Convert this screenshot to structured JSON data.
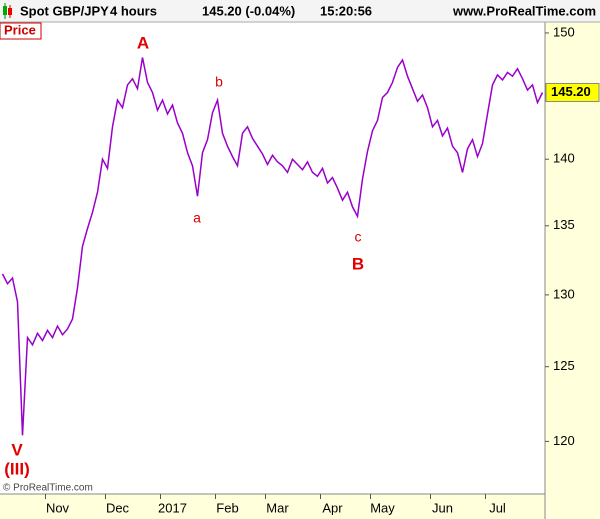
{
  "chart_data": {
    "type": "line",
    "title": "Spot GBP/JPY",
    "interval": "4 hours",
    "quote": "145.20 (-0.04%)",
    "time": "15:20:56",
    "source": "www.ProRealTime.com",
    "copyright": "© ProRealTime.com",
    "log_scale": true,
    "grid": false,
    "categories": [
      null,
      null,
      null,
      null,
      null,
      null,
      null,
      null,
      null,
      null,
      null,
      "Nov",
      null,
      null,
      null,
      null,
      null,
      null,
      null,
      null,
      null,
      null,
      null,
      "Dec",
      null,
      null,
      null,
      null,
      null,
      null,
      null,
      null,
      null,
      null,
      "2017",
      null,
      null,
      null,
      null,
      null,
      null,
      null,
      null,
      null,
      null,
      "Feb",
      null,
      null,
      null,
      null,
      null,
      null,
      null,
      null,
      null,
      "Mar",
      null,
      null,
      null,
      null,
      null,
      null,
      null,
      null,
      null,
      null,
      "Apr",
      null,
      null,
      null,
      null,
      null,
      null,
      null,
      null,
      null,
      "May",
      null,
      null,
      null,
      null,
      null,
      null,
      null,
      null,
      null,
      null,
      null,
      "Jun",
      null,
      null,
      null,
      null,
      null,
      null,
      null,
      null,
      null,
      null,
      "Jul",
      null,
      null,
      null,
      null,
      null,
      null,
      null,
      null,
      null
    ],
    "series": [
      {
        "name": "Price",
        "color": "#9900cc",
        "values": [
          131.5,
          130.8,
          131.2,
          129.5,
          120.4,
          127.0,
          126.5,
          127.3,
          126.8,
          127.5,
          127.0,
          127.8,
          127.2,
          127.6,
          128.3,
          130.5,
          133.5,
          134.8,
          136.0,
          137.5,
          140.0,
          139.3,
          142.5,
          144.6,
          144.0,
          145.8,
          146.3,
          145.5,
          148.0,
          146.0,
          145.2,
          143.8,
          144.6,
          143.5,
          144.2,
          142.8,
          142.0,
          140.5,
          139.5,
          137.2,
          140.5,
          141.5,
          143.6,
          144.6,
          142.0,
          141.0,
          140.2,
          139.5,
          142.0,
          142.5,
          141.6,
          141.0,
          140.4,
          139.6,
          140.3,
          139.8,
          139.5,
          139.0,
          140.0,
          139.6,
          139.2,
          139.8,
          139.0,
          138.7,
          139.3,
          138.2,
          138.6,
          137.8,
          136.9,
          137.5,
          136.4,
          135.7,
          138.5,
          140.6,
          142.2,
          143.0,
          144.8,
          145.2,
          146.0,
          147.2,
          147.8,
          146.5,
          145.5,
          144.5,
          145.0,
          144.0,
          142.5,
          143.0,
          141.8,
          142.4,
          141.0,
          140.5,
          139.0,
          140.8,
          141.5,
          140.2,
          141.2,
          143.5,
          145.8,
          146.6,
          146.2,
          146.8,
          146.5,
          147.1,
          146.3,
          145.4,
          145.8,
          144.4,
          145.2
        ]
      }
    ],
    "last_price": {
      "value": 145.2,
      "label": "145.20"
    },
    "ylim": [
      116.6,
      150.9
    ],
    "yticks": [
      120,
      125,
      130,
      135,
      140,
      145,
      150
    ],
    "annotations": [
      "A",
      "a",
      "b",
      "c",
      "B",
      "V",
      "(III)"
    ]
  }
}
